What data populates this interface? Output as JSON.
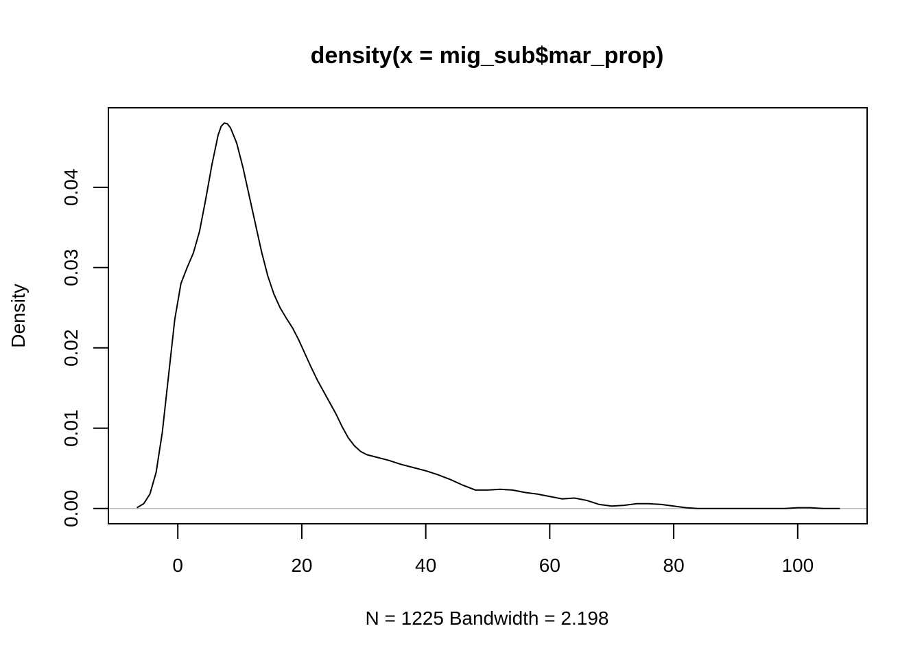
{
  "chart_data": {
    "type": "line",
    "title": "density(x = mig_sub$mar_prop)",
    "xlabel": "N = 1225   Bandwidth = 2.198",
    "ylabel": "Density",
    "xlim": [
      -11.2,
      111.2
    ],
    "ylim": [
      -0.0019,
      0.0499
    ],
    "x_ticks": [
      0,
      20,
      40,
      60,
      80,
      100
    ],
    "x_tick_labels": [
      "0",
      "20",
      "40",
      "60",
      "80",
      "100"
    ],
    "y_ticks": [
      0.0,
      0.01,
      0.02,
      0.03,
      0.04
    ],
    "y_tick_labels": [
      "0.00",
      "0.01",
      "0.02",
      "0.03",
      "0.04"
    ],
    "baseline_y": 0,
    "baseline_color": "#bebebe",
    "line_color": "#000000",
    "series": [
      {
        "x": [
          -6.6,
          -5.5,
          -4.5,
          -3.5,
          -2.5,
          -1.5,
          -0.5,
          0.5,
          1.5,
          2.5,
          3.5,
          4.5,
          5.5,
          6.5,
          7.0,
          7.5,
          8.0,
          8.5,
          9.5,
          10.5,
          11.5,
          12.5,
          13.5,
          14.5,
          15.5,
          16.5,
          17.5,
          18.5,
          19.5,
          20.5,
          21.5,
          22.5,
          23.5,
          24.5,
          25.5,
          26.5,
          27.5,
          28.5,
          29.5,
          30.5,
          32.0,
          34.0,
          36.0,
          38.0,
          40.0,
          42.0,
          44.0,
          46.0,
          48.0,
          50.0,
          52.0,
          54.0,
          56.0,
          58.0,
          60.0,
          62.0,
          64.0,
          66.0,
          68.0,
          70.0,
          72.0,
          74.0,
          76.0,
          78.0,
          80.0,
          82.0,
          84.0,
          86.0,
          90.0,
          95.0,
          98.0,
          100.0,
          102.0,
          104.0,
          106.8
        ],
        "y": [
          0.0001,
          0.0006,
          0.0018,
          0.0045,
          0.0095,
          0.0165,
          0.0235,
          0.028,
          0.03,
          0.0318,
          0.0345,
          0.0385,
          0.0428,
          0.0465,
          0.0476,
          0.048,
          0.0479,
          0.0474,
          0.0455,
          0.0425,
          0.039,
          0.0355,
          0.032,
          0.029,
          0.0267,
          0.025,
          0.0237,
          0.0225,
          0.021,
          0.0193,
          0.0176,
          0.016,
          0.0146,
          0.0132,
          0.0118,
          0.0102,
          0.0088,
          0.0078,
          0.0071,
          0.0067,
          0.0064,
          0.006,
          0.0055,
          0.0051,
          0.0047,
          0.0042,
          0.0036,
          0.0029,
          0.0023,
          0.0023,
          0.0024,
          0.0023,
          0.002,
          0.0018,
          0.0015,
          0.0012,
          0.0013,
          0.001,
          0.0005,
          0.0003,
          0.0004,
          0.0006,
          0.0006,
          0.0005,
          0.0003,
          0.0001,
          0.0,
          0.0,
          0.0,
          0.0,
          0.0,
          0.0001,
          0.0001,
          0.0,
          0.0
        ]
      }
    ]
  }
}
